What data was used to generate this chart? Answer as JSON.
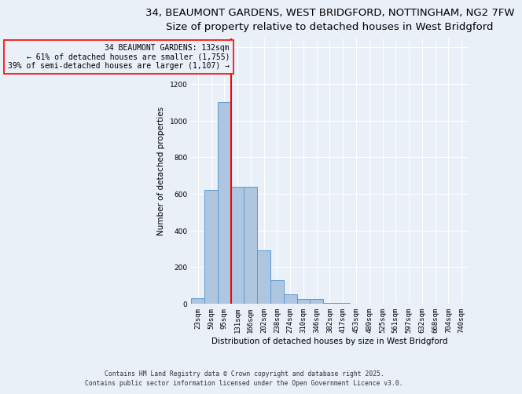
{
  "title_line1": "34, BEAUMONT GARDENS, WEST BRIDGFORD, NOTTINGHAM, NG2 7FW",
  "title_line2": "Size of property relative to detached houses in West Bridgford",
  "xlabel": "Distribution of detached houses by size in West Bridgford",
  "ylabel": "Number of detached properties",
  "categories": [
    "23sqm",
    "59sqm",
    "95sqm",
    "131sqm",
    "166sqm",
    "202sqm",
    "238sqm",
    "274sqm",
    "310sqm",
    "346sqm",
    "382sqm",
    "417sqm",
    "453sqm",
    "489sqm",
    "525sqm",
    "561sqm",
    "597sqm",
    "632sqm",
    "668sqm",
    "704sqm",
    "740sqm"
  ],
  "values": [
    30,
    620,
    1100,
    640,
    640,
    290,
    130,
    50,
    25,
    25,
    5,
    2,
    0,
    0,
    0,
    0,
    0,
    0,
    0,
    0,
    0
  ],
  "bar_color": "#aec6e0",
  "bar_edge_color": "#5b9bd5",
  "vline_color": "red",
  "annotation_box_color": "red",
  "annotation_title": "34 BEAUMONT GARDENS: 132sqm",
  "annotation_line1": "← 61% of detached houses are smaller (1,755)",
  "annotation_line2": "39% of semi-detached houses are larger (1,107) →",
  "ylim": [
    0,
    1450
  ],
  "yticks": [
    0,
    200,
    400,
    600,
    800,
    1000,
    1200,
    1400
  ],
  "bg_color": "#eaf0f8",
  "grid_color": "#ffffff",
  "footer_line1": "Contains HM Land Registry data © Crown copyright and database right 2025.",
  "footer_line2": "Contains public sector information licensed under the Open Government Licence v3.0.",
  "title_fontsize": 9.5,
  "axis_label_fontsize": 7.5,
  "tick_fontsize": 6.5,
  "annotation_fontsize": 7,
  "vline_x": 2.5
}
